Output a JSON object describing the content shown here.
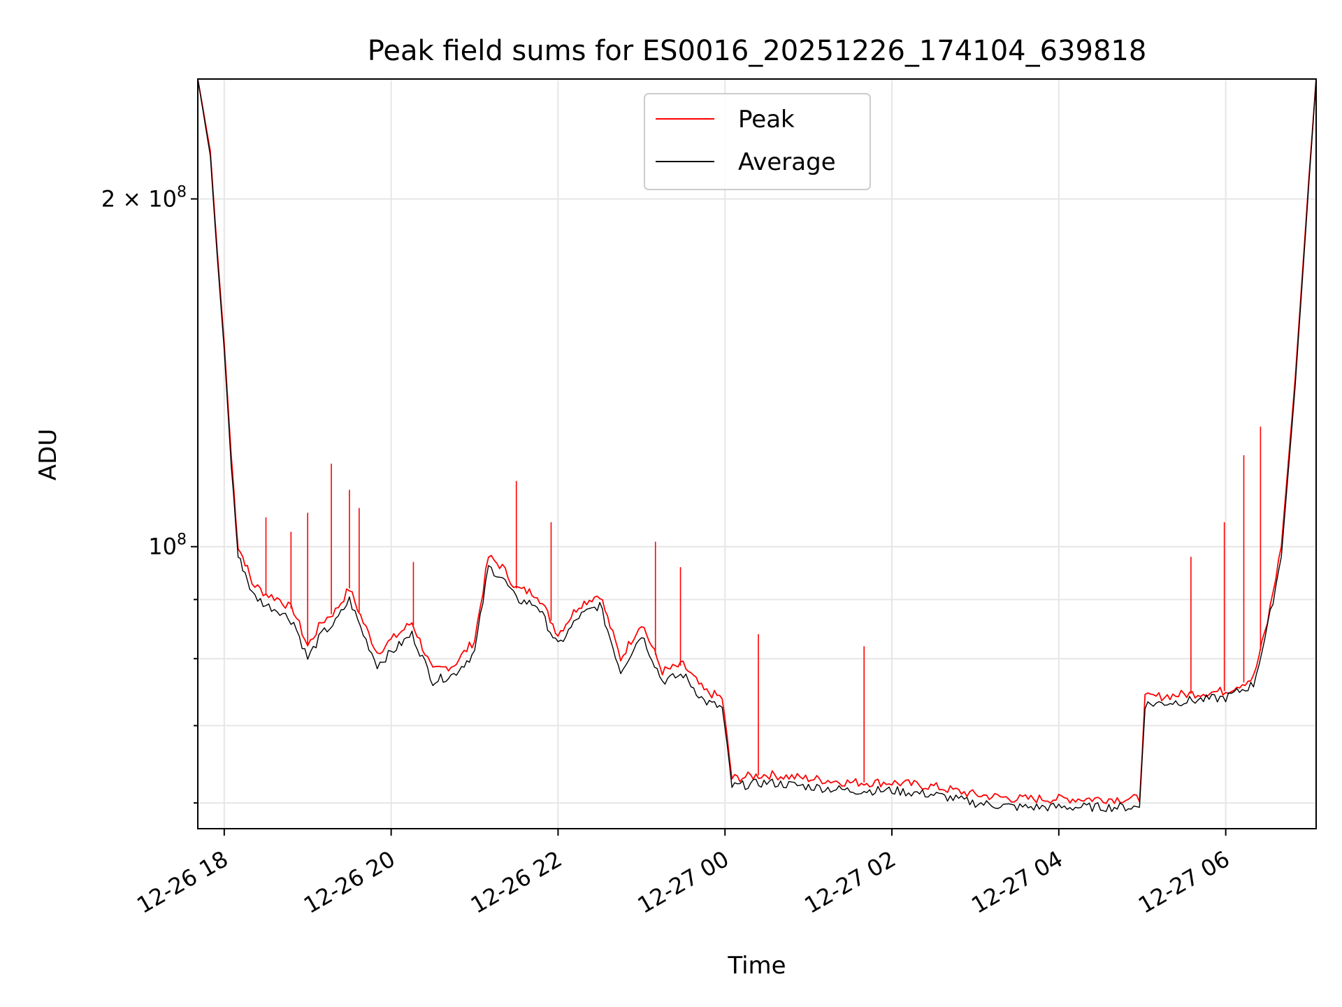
{
  "chart_data": {
    "type": "line",
    "title": "Peak field sums for ES0016_20251226_174104_639818",
    "xlabel": "Time",
    "ylabel": "ADU",
    "yscale": "log",
    "ylim": [
      57000000,
      254000000
    ],
    "xlim": [
      "2025-12-26 17:41",
      "2025-12-27 07:05"
    ],
    "grid": true,
    "legend_placement": "upper-center",
    "x_ticks": [
      "2025-12-26 18:00",
      "2025-12-26 20:00",
      "2025-12-26 22:00",
      "2025-12-27 00:00",
      "2025-12-27 02:00",
      "2025-12-27 04:00",
      "2025-12-27 06:00"
    ],
    "x_tick_labels": [
      "12-26 18",
      "12-26 20",
      "12-26 22",
      "12-27 00",
      "12-27 02",
      "12-27 04",
      "12-27 06"
    ],
    "y_major_ticks": [
      {
        "value": 100000000,
        "base": "10",
        "exp": "8",
        "mant": ""
      },
      {
        "value": 200000000,
        "base": "10",
        "exp": "8",
        "mant": "2 × "
      }
    ],
    "y_minor_ticks": [
      60000000,
      70000000,
      80000000,
      90000000
    ],
    "series": [
      {
        "name": "Peak",
        "color": "#ff0000",
        "x": [
          "2025-12-26 17:41",
          "2025-12-26 17:50",
          "2025-12-26 17:55",
          "2025-12-26 18:00",
          "2025-12-26 18:05",
          "2025-12-26 18:10",
          "2025-12-26 18:15",
          "2025-12-26 18:20",
          "2025-12-26 18:30",
          "2025-12-26 18:40",
          "2025-12-26 18:50",
          "2025-12-26 19:00",
          "2025-12-26 19:10",
          "2025-12-26 19:20",
          "2025-12-26 19:30",
          "2025-12-26 19:40",
          "2025-12-26 19:50",
          "2025-12-26 20:00",
          "2025-12-26 20:15",
          "2025-12-26 20:30",
          "2025-12-26 20:45",
          "2025-12-26 21:00",
          "2025-12-26 21:10",
          "2025-12-26 21:20",
          "2025-12-26 21:30",
          "2025-12-26 21:45",
          "2025-12-26 22:00",
          "2025-12-26 22:15",
          "2025-12-26 22:30",
          "2025-12-26 22:45",
          "2025-12-26 23:00",
          "2025-12-26 23:15",
          "2025-12-26 23:30",
          "2025-12-26 23:45",
          "2025-12-26 23:58",
          "2025-12-27 00:05",
          "2025-12-27 00:30",
          "2025-12-27 01:00",
          "2025-12-27 01:30",
          "2025-12-27 02:00",
          "2025-12-27 02:30",
          "2025-12-27 03:00",
          "2025-12-27 03:30",
          "2025-12-27 04:00",
          "2025-12-27 04:30",
          "2025-12-27 04:58",
          "2025-12-27 05:02",
          "2025-12-27 05:30",
          "2025-12-27 06:00",
          "2025-12-27 06:20",
          "2025-12-27 06:30",
          "2025-12-27 06:40",
          "2025-12-27 06:50",
          "2025-12-27 07:00",
          "2025-12-27 07:05"
        ],
        "y": [
          254000000,
          220000000,
          180000000,
          150000000,
          120000000,
          100000000,
          97000000,
          93000000,
          91000000,
          90000000,
          88000000,
          82000000,
          86000000,
          88000000,
          92000000,
          86000000,
          81000000,
          83000000,
          86000000,
          78000000,
          79000000,
          83000000,
          98000000,
          96000000,
          92000000,
          91000000,
          84000000,
          89000000,
          91000000,
          80000000,
          86000000,
          78000000,
          79000000,
          75000000,
          74000000,
          63000000,
          63500000,
          63000000,
          62500000,
          62500000,
          62000000,
          61000000,
          60500000,
          60500000,
          60500000,
          60500000,
          74000000,
          74500000,
          75000000,
          77000000,
          86000000,
          100000000,
          140000000,
          210000000,
          254000000
        ]
      },
      {
        "name": "Average",
        "color": "#000000",
        "x": [
          "2025-12-26 17:41",
          "2025-12-26 17:50",
          "2025-12-26 17:55",
          "2025-12-26 18:00",
          "2025-12-26 18:05",
          "2025-12-26 18:10",
          "2025-12-26 18:15",
          "2025-12-26 18:20",
          "2025-12-26 18:30",
          "2025-12-26 18:40",
          "2025-12-26 18:50",
          "2025-12-26 19:00",
          "2025-12-26 19:10",
          "2025-12-26 19:20",
          "2025-12-26 19:30",
          "2025-12-26 19:40",
          "2025-12-26 19:50",
          "2025-12-26 20:00",
          "2025-12-26 20:15",
          "2025-12-26 20:30",
          "2025-12-26 20:45",
          "2025-12-26 21:00",
          "2025-12-26 21:10",
          "2025-12-26 21:20",
          "2025-12-26 21:30",
          "2025-12-26 21:45",
          "2025-12-26 22:00",
          "2025-12-26 22:15",
          "2025-12-26 22:30",
          "2025-12-26 22:45",
          "2025-12-26 23:00",
          "2025-12-26 23:15",
          "2025-12-26 23:30",
          "2025-12-26 23:45",
          "2025-12-26 23:58",
          "2025-12-27 00:05",
          "2025-12-27 00:30",
          "2025-12-27 01:00",
          "2025-12-27 01:30",
          "2025-12-27 02:00",
          "2025-12-27 02:30",
          "2025-12-27 03:00",
          "2025-12-27 03:30",
          "2025-12-27 04:00",
          "2025-12-27 04:30",
          "2025-12-27 04:58",
          "2025-12-27 05:02",
          "2025-12-27 05:30",
          "2025-12-27 06:00",
          "2025-12-27 06:20",
          "2025-12-27 06:30",
          "2025-12-27 06:40",
          "2025-12-27 06:50",
          "2025-12-27 07:00",
          "2025-12-27 07:05"
        ],
        "y": [
          254000000,
          218000000,
          178000000,
          148000000,
          118000000,
          98000000,
          95000000,
          91000000,
          89000000,
          88000000,
          86000000,
          80000000,
          84000000,
          86000000,
          90000000,
          84000000,
          79000000,
          81000000,
          84000000,
          76500000,
          77500000,
          81000000,
          96000000,
          94000000,
          90000000,
          89000000,
          82000000,
          87000000,
          89000000,
          78000000,
          84000000,
          76500000,
          77500000,
          73500000,
          72500000,
          62000000,
          62500000,
          62000000,
          61500000,
          61500000,
          61000000,
          60000000,
          59500000,
          59500000,
          59500000,
          59500000,
          73000000,
          73500000,
          74000000,
          76000000,
          85000000,
          98000000,
          138000000,
          208000000,
          254000000
        ]
      }
    ],
    "spikes": [
      {
        "x": "2025-12-26 18:30",
        "y": 106000000
      },
      {
        "x": "2025-12-26 18:48",
        "y": 103000000
      },
      {
        "x": "2025-12-26 19:00",
        "y": 107000000
      },
      {
        "x": "2025-12-26 19:17",
        "y": 118000000
      },
      {
        "x": "2025-12-26 19:30",
        "y": 112000000
      },
      {
        "x": "2025-12-26 19:37",
        "y": 108000000
      },
      {
        "x": "2025-12-26 20:16",
        "y": 97000000
      },
      {
        "x": "2025-12-26 21:30",
        "y": 114000000
      },
      {
        "x": "2025-12-26 21:55",
        "y": 105000000
      },
      {
        "x": "2025-12-26 23:10",
        "y": 101000000
      },
      {
        "x": "2025-12-26 23:28",
        "y": 96000000
      },
      {
        "x": "2025-12-27 00:24",
        "y": 84000000
      },
      {
        "x": "2025-12-27 01:40",
        "y": 82000000
      },
      {
        "x": "2025-12-27 05:35",
        "y": 98000000
      },
      {
        "x": "2025-12-27 05:59",
        "y": 105000000
      },
      {
        "x": "2025-12-27 06:13",
        "y": 120000000
      },
      {
        "x": "2025-12-27 06:25",
        "y": 127000000
      }
    ]
  }
}
